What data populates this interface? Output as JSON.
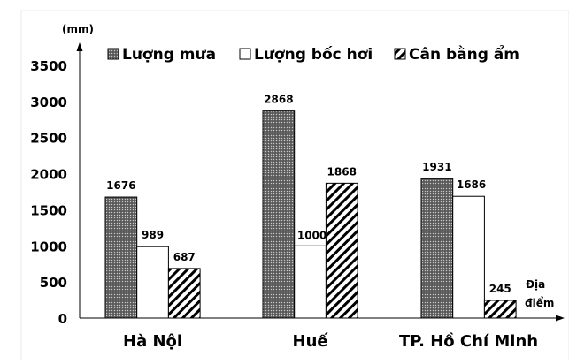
{
  "chart_data": {
    "type": "bar",
    "title": "",
    "ylabel": "(mm)",
    "xlabel": "Địa điểm",
    "xlabel_lines": [
      "Địa",
      "điểm"
    ],
    "ylim": [
      0,
      3500
    ],
    "yticks": [
      0,
      500,
      1000,
      1500,
      2000,
      2500,
      3000,
      3500
    ],
    "grid": false,
    "legend_position": "top",
    "categories": [
      "Hà Nội",
      "Huế",
      "TP. Hồ Chí Minh"
    ],
    "series": [
      {
        "name": "Lượng mưa",
        "values": [
          1676,
          2868,
          1931
        ],
        "fill": "dots"
      },
      {
        "name": "Lượng bốc hơi",
        "values": [
          989,
          1000,
          1686
        ],
        "fill": "white"
      },
      {
        "name": "Cân bằng ẩm",
        "values": [
          687,
          1868,
          245
        ],
        "fill": "hatch"
      }
    ]
  }
}
